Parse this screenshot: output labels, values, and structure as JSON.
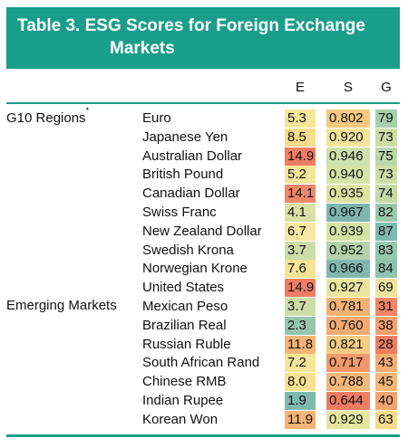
{
  "title": {
    "line1": "Table 3.  ESG Scores for Foreign Exchange",
    "line2": "Markets"
  },
  "columns": [
    "E",
    "S",
    "G"
  ],
  "groups": [
    {
      "label": "G10 Regions",
      "marker": "*",
      "rows": [
        {
          "name": "Euro",
          "e": "5.3",
          "s": "0.802",
          "g": "79",
          "colors": {
            "e": "#f6e69a",
            "s": "#f6c87e",
            "g": "#a7cfaa"
          }
        },
        {
          "name": "Japanese Yen",
          "e": "8.5",
          "s": "0.920",
          "g": "73",
          "colors": {
            "e": "#f6dd8b",
            "s": "#f3e59c",
            "g": "#cddca6"
          }
        },
        {
          "name": "Australian Dollar",
          "e": "14.9",
          "s": "0.946",
          "g": "75",
          "colors": {
            "e": "#ef7d62",
            "s": "#cde1aa",
            "g": "#bcd6a8"
          }
        },
        {
          "name": "British Pound",
          "e": "5.2",
          "s": "0.940",
          "g": "73",
          "colors": {
            "e": "#f4e59c",
            "s": "#d6e3a6",
            "g": "#cddca6"
          }
        },
        {
          "name": "Canadian Dollar",
          "e": "14.1",
          "s": "0.935",
          "g": "74",
          "colors": {
            "e": "#f0876a",
            "s": "#dde3a2",
            "g": "#c4d9a7"
          }
        },
        {
          "name": "Swiss Franc",
          "e": "4.1",
          "s": "0.967",
          "g": "82",
          "colors": {
            "e": "#d9e0a4",
            "s": "#7db6b0",
            "g": "#9bc9ab"
          }
        },
        {
          "name": "New Zealand Dollar",
          "e": "6.7",
          "s": "0.939",
          "g": "87",
          "colors": {
            "e": "#f7e7a0",
            "s": "#d7e3a5",
            "g": "#7eb9b1"
          }
        },
        {
          "name": "Swedish Krona",
          "e": "3.7",
          "s": "0.952",
          "g": "83",
          "colors": {
            "e": "#cddda7",
            "s": "#b3d3aa",
            "g": "#94c6ac"
          }
        },
        {
          "name": "Norwegian Krone",
          "e": "7.6",
          "s": "0.966",
          "g": "84",
          "colors": {
            "e": "#f6e396",
            "s": "#80b8b1",
            "g": "#8fc3ad"
          }
        },
        {
          "name": "United States",
          "e": "14.9",
          "s": "0.927",
          "g": "69",
          "colors": {
            "e": "#ef7d62",
            "s": "#eae6a0",
            "g": "#eee39e"
          }
        }
      ]
    },
    {
      "label": "Emerging Markets",
      "marker": "",
      "rows": [
        {
          "name": "Mexican Peso",
          "e": "3.7",
          "s": "0.781",
          "g": "31",
          "colors": {
            "e": "#cddda7",
            "s": "#f3b274",
            "g": "#ef8466"
          }
        },
        {
          "name": "Brazilian Real",
          "e": "2.3",
          "s": "0.760",
          "g": "38",
          "colors": {
            "e": "#97c4ad",
            "s": "#f3ab71",
            "g": "#f2a070"
          }
        },
        {
          "name": "Russian Ruble",
          "e": "11.8",
          "s": "0.821",
          "g": "28",
          "colors": {
            "e": "#f4b576",
            "s": "#f6cd83",
            "g": "#ef7d62"
          }
        },
        {
          "name": "South African Rand",
          "e": "7.2",
          "s": "0.717",
          "g": "43",
          "colors": {
            "e": "#f6e599",
            "s": "#f2996b",
            "g": "#f4ae74"
          }
        },
        {
          "name": "Chinese RMB",
          "e": "8.0",
          "s": "0.788",
          "g": "45",
          "colors": {
            "e": "#f6e193",
            "s": "#f3b777",
            "g": "#f4b577"
          }
        },
        {
          "name": "Indian Rupee",
          "e": "1.9",
          "s": "0.644",
          "g": "40",
          "colors": {
            "e": "#7eb9b1",
            "s": "#ef7d62",
            "g": "#f3a571"
          }
        },
        {
          "name": "Korean Won",
          "e": "11.9",
          "s": "0.929",
          "g": "63",
          "colors": {
            "e": "#f4b475",
            "s": "#e6e6a1",
            "g": "#f5dc8e"
          }
        }
      ]
    }
  ]
}
